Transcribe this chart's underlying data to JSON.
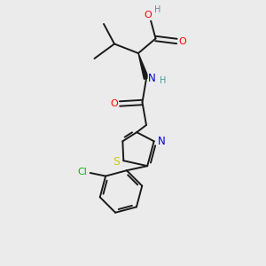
{
  "bg_color": "#ebebeb",
  "bond_color": "#1a1a1a",
  "atom_colors": {
    "O": "#ff0000",
    "N": "#0000cd",
    "S": "#cccc00",
    "Cl": "#00bb00",
    "H": "#4a9a9a",
    "C": "#1a1a1a"
  },
  "figsize": [
    3.0,
    3.0
  ],
  "dpi": 100
}
